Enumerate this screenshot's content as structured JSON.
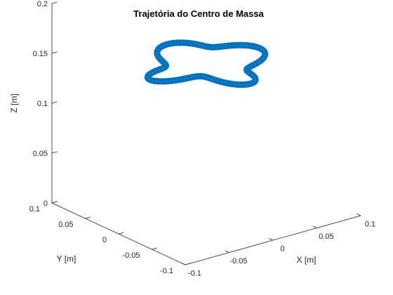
{
  "chart_data": {
    "type": "line3d",
    "title": "Trajetória do Centro de Massa",
    "xlabel": "X [m]",
    "ylabel": "Y [m]",
    "zlabel": "Z [m]",
    "xlim": [
      -0.1,
      0.1
    ],
    "ylim": [
      -0.1,
      0.1
    ],
    "zlim": [
      0,
      0.2
    ],
    "x_ticks": [
      -0.1,
      -0.05,
      0,
      0.05,
      0.1
    ],
    "y_ticks": [
      -0.1,
      -0.05,
      0,
      0.05,
      0.1
    ],
    "z_ticks": [
      0,
      0.05,
      0.1,
      0.15,
      0.2
    ],
    "x_tick_labels": [
      "-0.1",
      "-0.05",
      "0",
      "0.05",
      "0.1"
    ],
    "y_tick_labels": [
      "-0.1",
      "-0.05",
      "0",
      "0.05",
      "0.1"
    ],
    "z_tick_labels": [
      "0",
      "0.05",
      "0.1",
      "0.15",
      "0.2"
    ],
    "grid": false,
    "line_color": "#0072BD",
    "series": [
      {
        "path_description": "closed four-lobed loop around the origin, traced repeatedly",
        "center": [
          0,
          0
        ],
        "base_radius": 0.05,
        "lobe_amplitude": 0.013,
        "lobes": 4,
        "z_center": 0.145,
        "z_amplitude": 0.003
      }
    ]
  }
}
